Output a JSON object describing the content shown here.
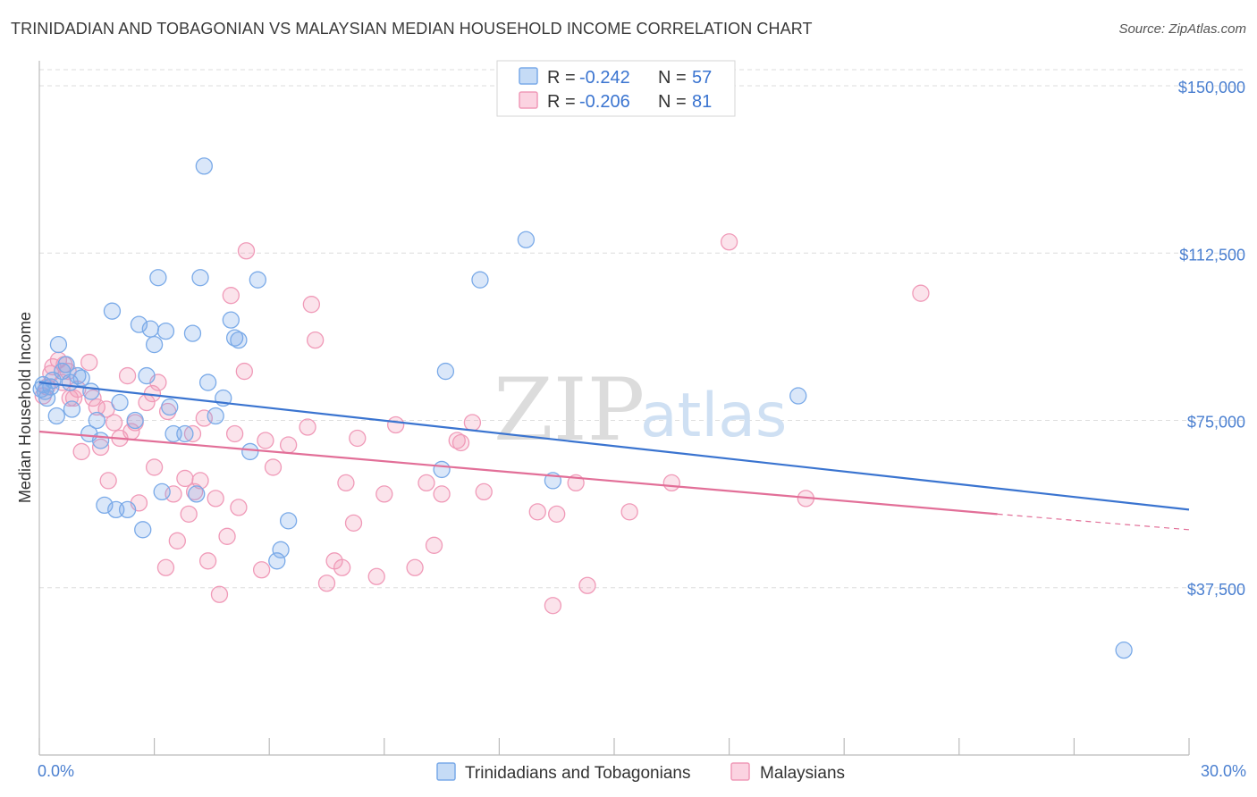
{
  "header": {
    "title": "TRINIDADIAN AND TOBAGONIAN VS MALAYSIAN MEDIAN HOUSEHOLD INCOME CORRELATION CHART",
    "source": "Source: ZipAtlas.com"
  },
  "watermark": {
    "zip": "ZIP",
    "atlas": "atlas"
  },
  "legend": {
    "rows": [
      {
        "r_label": "R =",
        "r_value": "-0.242",
        "n_label": "N =",
        "n_value": "57",
        "color": "#7aaae8"
      },
      {
        "r_label": "R =",
        "r_value": "-0.206",
        "n_label": "N =",
        "n_value": "81",
        "color": "#f09ab8"
      }
    ]
  },
  "chart_data": {
    "type": "scatter",
    "title": "TRINIDADIAN AND TOBAGONIAN VS MALAYSIAN MEDIAN HOUSEHOLD INCOME CORRELATION CHART",
    "xlabel": "",
    "ylabel": "Median Household Income",
    "xlim": [
      0,
      30
    ],
    "ylim": [
      0,
      155000
    ],
    "x_tick_labels": [
      "0.0%",
      "30.0%"
    ],
    "y_ticks": [
      {
        "value": 37500,
        "label": "$37,500"
      },
      {
        "value": 75000,
        "label": "$75,000"
      },
      {
        "value": 112500,
        "label": "$112,500"
      },
      {
        "value": 150000,
        "label": "$150,000"
      }
    ],
    "series": [
      {
        "name": "Trinidadians and Tobagonians",
        "color": "#7aaae8",
        "line_color": "#3a74d0",
        "trend": {
          "x0": 0,
          "y0": 83500,
          "x1": 30,
          "y1": 55000
        },
        "points": [
          [
            0.1,
            83000
          ],
          [
            0.15,
            81500
          ],
          [
            0.2,
            80000
          ],
          [
            0.3,
            82500
          ],
          [
            0.35,
            84000
          ],
          [
            0.45,
            76000
          ],
          [
            0.5,
            92000
          ],
          [
            0.6,
            86000
          ],
          [
            0.7,
            87500
          ],
          [
            0.8,
            83500
          ],
          [
            0.85,
            77500
          ],
          [
            1.0,
            85000
          ],
          [
            1.1,
            84500
          ],
          [
            1.3,
            72000
          ],
          [
            1.35,
            81500
          ],
          [
            1.5,
            75000
          ],
          [
            1.6,
            70500
          ],
          [
            1.7,
            56000
          ],
          [
            1.9,
            99500
          ],
          [
            2.0,
            55000
          ],
          [
            2.1,
            79000
          ],
          [
            2.3,
            55000
          ],
          [
            2.5,
            75000
          ],
          [
            2.6,
            96500
          ],
          [
            2.7,
            50500
          ],
          [
            2.8,
            85000
          ],
          [
            2.9,
            95500
          ],
          [
            3.0,
            92000
          ],
          [
            3.1,
            107000
          ],
          [
            3.2,
            59000
          ],
          [
            3.3,
            95000
          ],
          [
            3.4,
            78000
          ],
          [
            3.5,
            72000
          ],
          [
            3.8,
            72000
          ],
          [
            4.0,
            94500
          ],
          [
            4.1,
            58500
          ],
          [
            4.2,
            107000
          ],
          [
            4.3,
            132000
          ],
          [
            4.4,
            83500
          ],
          [
            4.6,
            76000
          ],
          [
            4.8,
            80000
          ],
          [
            5.0,
            97500
          ],
          [
            5.1,
            93500
          ],
          [
            5.2,
            93000
          ],
          [
            5.5,
            68000
          ],
          [
            5.7,
            106500
          ],
          [
            6.2,
            43500
          ],
          [
            6.3,
            46000
          ],
          [
            6.5,
            52500
          ],
          [
            10.5,
            64000
          ],
          [
            10.6,
            86000
          ],
          [
            11.5,
            106500
          ],
          [
            12.7,
            115500
          ],
          [
            13.4,
            61500
          ],
          [
            19.8,
            80500
          ],
          [
            28.3,
            23500
          ],
          [
            0.05,
            82000
          ]
        ]
      },
      {
        "name": "Malaysians",
        "color": "#f09ab8",
        "line_color": "#e26f98",
        "trend": {
          "x0": 0,
          "y0": 72500,
          "x1": 25,
          "y1": 54000
        },
        "trend_ext": {
          "x0": 25,
          "y0": 54000,
          "x1": 30,
          "y1": 50500
        },
        "points": [
          [
            0.1,
            80500
          ],
          [
            0.2,
            82500
          ],
          [
            0.3,
            85500
          ],
          [
            0.35,
            87000
          ],
          [
            0.5,
            88500
          ],
          [
            0.6,
            83500
          ],
          [
            0.65,
            87500
          ],
          [
            0.75,
            86000
          ],
          [
            0.8,
            80000
          ],
          [
            0.9,
            80000
          ],
          [
            1.0,
            82000
          ],
          [
            1.1,
            68000
          ],
          [
            1.3,
            88000
          ],
          [
            1.4,
            80000
          ],
          [
            1.5,
            78000
          ],
          [
            1.6,
            69000
          ],
          [
            1.75,
            77500
          ],
          [
            1.8,
            61500
          ],
          [
            1.95,
            74500
          ],
          [
            2.1,
            71000
          ],
          [
            2.3,
            85000
          ],
          [
            2.4,
            72500
          ],
          [
            2.5,
            74500
          ],
          [
            2.6,
            56500
          ],
          [
            2.8,
            79000
          ],
          [
            2.95,
            81000
          ],
          [
            3.0,
            64500
          ],
          [
            3.1,
            83500
          ],
          [
            3.3,
            42000
          ],
          [
            3.35,
            77000
          ],
          [
            3.5,
            58500
          ],
          [
            3.6,
            48000
          ],
          [
            3.8,
            62000
          ],
          [
            3.9,
            54000
          ],
          [
            4.0,
            72000
          ],
          [
            4.05,
            59000
          ],
          [
            4.2,
            61500
          ],
          [
            4.3,
            75500
          ],
          [
            4.4,
            43500
          ],
          [
            4.6,
            57500
          ],
          [
            4.7,
            36000
          ],
          [
            4.9,
            49000
          ],
          [
            5.0,
            103000
          ],
          [
            5.1,
            72000
          ],
          [
            5.2,
            55500
          ],
          [
            5.35,
            86000
          ],
          [
            5.4,
            113000
          ],
          [
            5.8,
            41500
          ],
          [
            5.9,
            70500
          ],
          [
            6.1,
            64500
          ],
          [
            6.5,
            69500
          ],
          [
            7.0,
            73500
          ],
          [
            7.1,
            101000
          ],
          [
            7.2,
            93000
          ],
          [
            7.5,
            38500
          ],
          [
            7.7,
            43500
          ],
          [
            7.9,
            42000
          ],
          [
            8.0,
            61000
          ],
          [
            8.2,
            52000
          ],
          [
            8.3,
            71000
          ],
          [
            8.8,
            40000
          ],
          [
            9.0,
            58500
          ],
          [
            9.3,
            74000
          ],
          [
            9.8,
            42000
          ],
          [
            10.1,
            61000
          ],
          [
            10.3,
            47000
          ],
          [
            10.5,
            58500
          ],
          [
            10.9,
            70500
          ],
          [
            11.0,
            70000
          ],
          [
            11.3,
            74500
          ],
          [
            11.6,
            59000
          ],
          [
            13.0,
            54500
          ],
          [
            13.4,
            33500
          ],
          [
            13.5,
            54000
          ],
          [
            14.0,
            61000
          ],
          [
            14.3,
            38000
          ],
          [
            15.4,
            54500
          ],
          [
            16.5,
            61000
          ],
          [
            18.0,
            115000
          ],
          [
            20.0,
            57500
          ],
          [
            23.0,
            103500
          ]
        ]
      }
    ],
    "bottom_legend": [
      "Trinidadians and Tobagonians",
      "Malaysians"
    ]
  }
}
